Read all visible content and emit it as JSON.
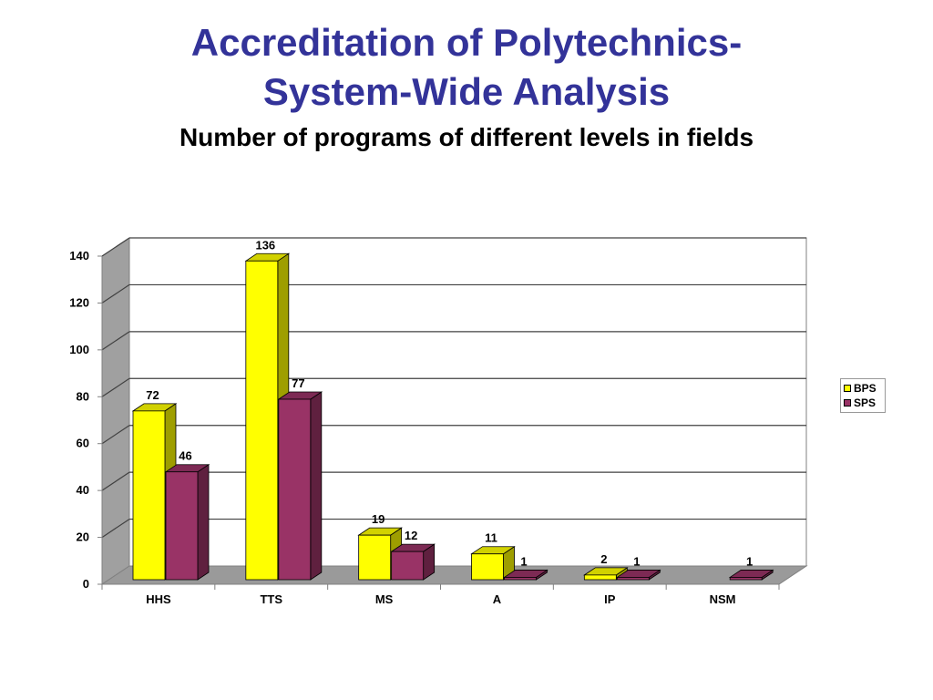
{
  "header": {
    "title_line1": "Accreditation of Polytechnics-",
    "title_line2": "System-Wide Analysis",
    "subtitle": "Number of programs of different levels in fields"
  },
  "chart_data": {
    "type": "bar",
    "style": "3d-clustered-column",
    "categories": [
      "HHS",
      "TTS",
      "MS",
      "A",
      "IP",
      "NSM"
    ],
    "series": [
      {
        "name": "BPS",
        "color": "#FFFF00",
        "values": [
          72,
          136,
          19,
          11,
          2,
          0
        ]
      },
      {
        "name": "SPS",
        "color": "#993366",
        "values": [
          46,
          77,
          12,
          1,
          1,
          1
        ]
      }
    ],
    "data_labels": [
      [
        "72",
        "136",
        "19",
        "11",
        "2",
        ""
      ],
      [
        "46",
        "77",
        "12",
        "1",
        "1",
        "1"
      ]
    ],
    "ylim": [
      0,
      140
    ],
    "yticks": [
      0,
      20,
      40,
      60,
      80,
      100,
      120,
      140
    ],
    "grid": true,
    "legend_position": "right"
  }
}
